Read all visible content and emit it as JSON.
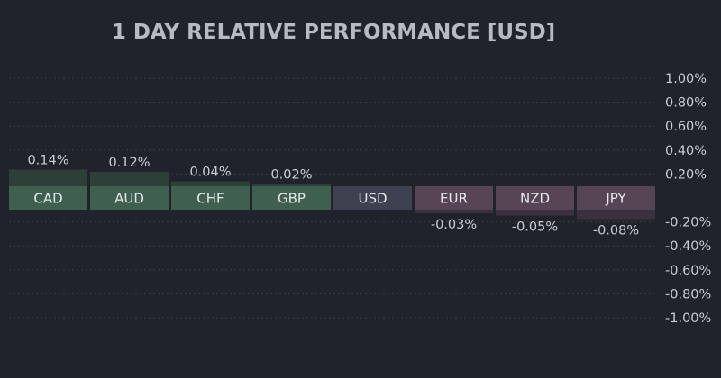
{
  "chart_data": {
    "type": "bar",
    "title": "1 DAY RELATIVE PERFORMANCE  [USD]",
    "categories": [
      "CAD",
      "AUD",
      "CHF",
      "GBP",
      "USD",
      "EUR",
      "NZD",
      "JPY"
    ],
    "values": [
      0.14,
      0.12,
      0.04,
      0.02,
      0.0,
      -0.03,
      -0.05,
      -0.08
    ],
    "value_labels": [
      "0.14%",
      "0.12%",
      "0.04%",
      "0.02%",
      "",
      "-0.03%",
      "-0.05%",
      "-0.08%"
    ],
    "ylim": [
      -1.0,
      1.0
    ],
    "yticks": [
      1.0,
      0.8,
      0.6,
      0.4,
      0.2,
      -0.2,
      -0.4,
      -0.6,
      -0.8,
      -1.0
    ],
    "ytick_labels": [
      "1.00%",
      "0.80%",
      "0.60%",
      "0.40%",
      "0.20%",
      "-0.20%",
      "-0.40%",
      "-0.60%",
      "-0.80%",
      "-1.00%"
    ],
    "grid": true,
    "colors": {
      "background": "#20232b",
      "positive_label": "#3f5f4f",
      "positive_bar": "#2d4038",
      "negative_label": "#574556",
      "negative_bar": "#3a3040",
      "neutral_label": "#3e4250",
      "neutral_bar": "#2c303a",
      "text": "#c9ccd3",
      "title": "#b7bac2",
      "grid": "#3a3e48"
    }
  }
}
